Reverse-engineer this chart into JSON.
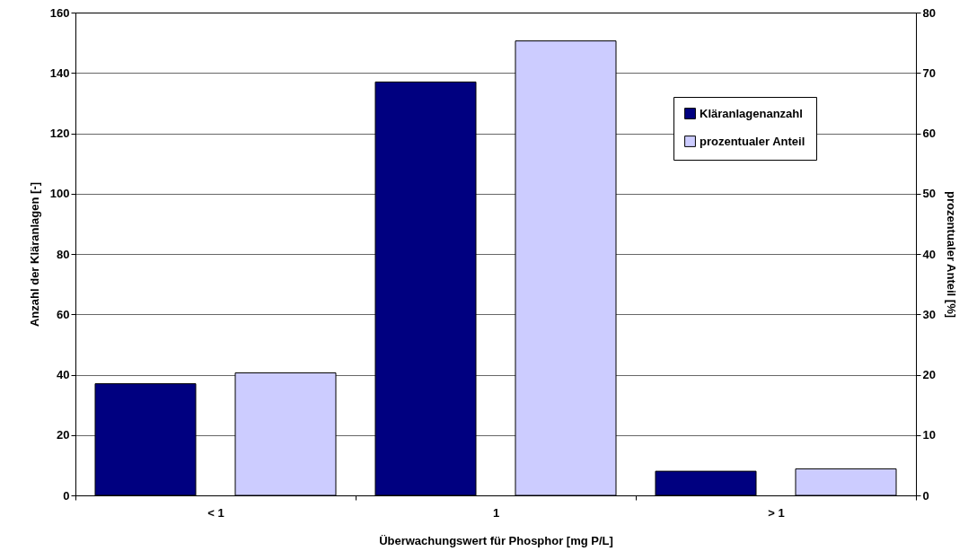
{
  "chart_data": {
    "type": "bar",
    "xlabel": "Überwachungswert für Phosphor [mg P/L]",
    "ylabel": "Anzahl der Kläranlagen [-]",
    "y2label": "prozentualer Anteil [%]",
    "categories": [
      "< 1",
      "1",
      "> 1"
    ],
    "series": [
      {
        "name": "Kläranlagenanzahl",
        "color": "#000080",
        "values": [
          37,
          137,
          8
        ]
      },
      {
        "name": "prozentualer Anteil",
        "color": "#ccccff",
        "values": [
          20.3,
          75.3,
          4.4
        ],
        "axis": "y2"
      }
    ],
    "ylim": [
      0,
      160
    ],
    "yticks": [
      0,
      20,
      40,
      60,
      80,
      100,
      120,
      140,
      160
    ],
    "y2lim": [
      0,
      80
    ],
    "y2ticks": [
      0,
      10,
      20,
      30,
      40,
      50,
      60,
      70,
      80
    ],
    "grid": "y",
    "legend": "top right"
  }
}
